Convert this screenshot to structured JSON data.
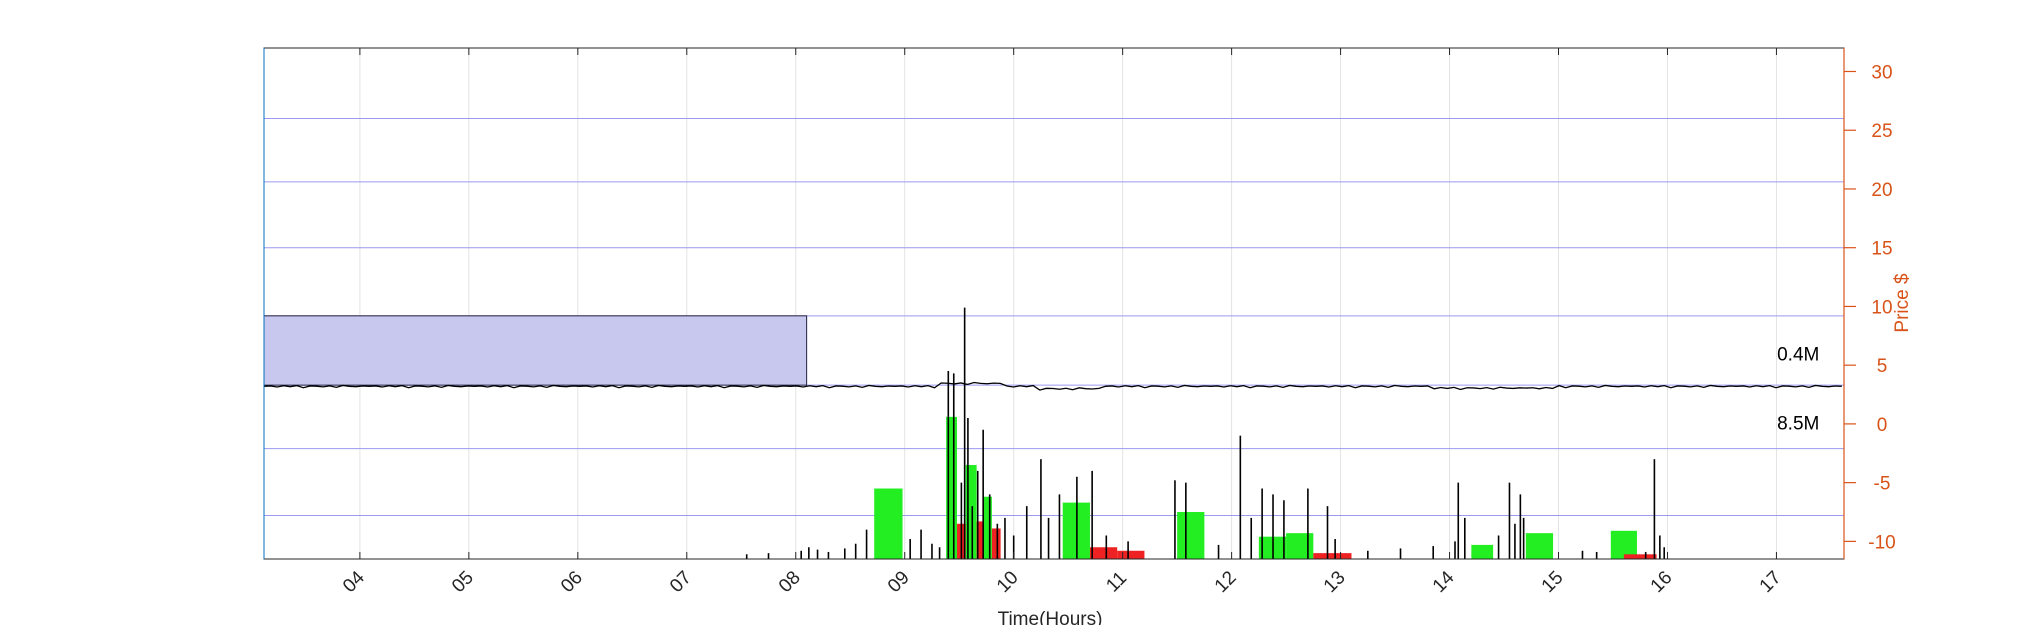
{
  "chart_data": {
    "type": "bar",
    "title": "",
    "xlabel": "Time(Hours)",
    "ylabel_right": "Price $",
    "x_ticks": [
      "04",
      "05",
      "06",
      "07",
      "08",
      "09",
      "10",
      "11",
      "12",
      "13",
      "14",
      "15",
      "16",
      "17"
    ],
    "xlim": [
      3.12,
      17.62
    ],
    "y_ticks": [
      "30",
      "25",
      "20",
      "15",
      "10",
      "5",
      "0",
      "-5",
      "-10"
    ],
    "ylim": [
      -11.5,
      32
    ],
    "grid": true,
    "price_level": 3.2,
    "premarket_volume_box": {
      "x": [
        3.12,
        8.1
      ],
      "y": [
        3.3,
        9.2
      ]
    },
    "annotations": [
      {
        "text": "0.4M",
        "x": 17.2,
        "y": 6.0
      },
      {
        "text": "8.5M",
        "x": 17.2,
        "y": 0.1
      }
    ],
    "series": [
      {
        "type": "buy_volume_bars",
        "color": "#22ee22",
        "bars": [
          {
            "x": [
              8.72,
              8.98
            ],
            "top": -5.5
          },
          {
            "x": [
              9.38,
              9.48
            ],
            "top": 0.6
          },
          {
            "x": [
              9.56,
              9.66
            ],
            "top": -3.5
          },
          {
            "x": [
              9.72,
              9.8
            ],
            "top": -6.2
          },
          {
            "x": [
              10.45,
              10.7
            ],
            "top": -6.7
          },
          {
            "x": [
              11.5,
              11.75
            ],
            "top": -7.5
          },
          {
            "x": [
              12.25,
              12.5
            ],
            "top": -9.6
          },
          {
            "x": [
              12.5,
              12.75
            ],
            "top": -9.3
          },
          {
            "x": [
              14.2,
              14.4
            ],
            "top": -10.3
          },
          {
            "x": [
              14.7,
              14.95
            ],
            "top": -9.3
          },
          {
            "x": [
              15.48,
              15.72
            ],
            "top": -9.1
          }
        ]
      },
      {
        "type": "sell_volume_bars",
        "color": "#ee2222",
        "bars": [
          {
            "x": [
              9.48,
              9.56
            ],
            "top": -8.5
          },
          {
            "x": [
              9.66,
              9.72
            ],
            "top": -8.3
          },
          {
            "x": [
              9.8,
              9.88
            ],
            "top": -8.9
          },
          {
            "x": [
              10.7,
              10.95
            ],
            "top": -10.5
          },
          {
            "x": [
              10.95,
              11.2
            ],
            "top": -10.8
          },
          {
            "x": [
              12.75,
              13.1
            ],
            "top": -11.0
          },
          {
            "x": [
              15.6,
              15.9
            ],
            "top": -11.1
          }
        ]
      },
      {
        "type": "trade_volume_spikes",
        "color": "#000000",
        "points": [
          {
            "x": 7.55,
            "top": -11.1
          },
          {
            "x": 7.75,
            "top": -11.0
          },
          {
            "x": 8.05,
            "top": -10.8
          },
          {
            "x": 8.12,
            "top": -10.5
          },
          {
            "x": 8.2,
            "top": -10.7
          },
          {
            "x": 8.3,
            "top": -10.9
          },
          {
            "x": 8.45,
            "top": -10.6
          },
          {
            "x": 8.55,
            "top": -10.2
          },
          {
            "x": 8.65,
            "top": -9.0
          },
          {
            "x": 9.05,
            "top": -9.8
          },
          {
            "x": 9.15,
            "top": -9.0
          },
          {
            "x": 9.25,
            "top": -10.2
          },
          {
            "x": 9.32,
            "top": -10.5
          },
          {
            "x": 9.4,
            "top": 4.5
          },
          {
            "x": 9.45,
            "top": 4.3
          },
          {
            "x": 9.52,
            "top": -5.0
          },
          {
            "x": 9.55,
            "top": 9.9
          },
          {
            "x": 9.58,
            "top": 0.5
          },
          {
            "x": 9.62,
            "top": -7.0
          },
          {
            "x": 9.67,
            "top": -4.0
          },
          {
            "x": 9.72,
            "top": -0.5
          },
          {
            "x": 9.78,
            "top": -6.0
          },
          {
            "x": 9.85,
            "top": -8.5
          },
          {
            "x": 9.92,
            "top": -8.0
          },
          {
            "x": 10.0,
            "top": -9.5
          },
          {
            "x": 10.12,
            "top": -7.0
          },
          {
            "x": 10.25,
            "top": -3.0
          },
          {
            "x": 10.32,
            "top": -8.0
          },
          {
            "x": 10.42,
            "top": -6.0
          },
          {
            "x": 10.58,
            "top": -4.5
          },
          {
            "x": 10.72,
            "top": -4.0
          },
          {
            "x": 10.85,
            "top": -9.5
          },
          {
            "x": 11.05,
            "top": -10.0
          },
          {
            "x": 11.48,
            "top": -4.8
          },
          {
            "x": 11.58,
            "top": -5.0
          },
          {
            "x": 11.88,
            "top": -10.3
          },
          {
            "x": 12.08,
            "top": -1.0
          },
          {
            "x": 12.18,
            "top": -8.0
          },
          {
            "x": 12.28,
            "top": -5.5
          },
          {
            "x": 12.38,
            "top": -6.0
          },
          {
            "x": 12.48,
            "top": -6.5
          },
          {
            "x": 12.7,
            "top": -5.5
          },
          {
            "x": 12.88,
            "top": -7.0
          },
          {
            "x": 12.95,
            "top": -9.8
          },
          {
            "x": 13.25,
            "top": -10.8
          },
          {
            "x": 13.55,
            "top": -10.6
          },
          {
            "x": 13.85,
            "top": -10.4
          },
          {
            "x": 14.05,
            "top": -10.0
          },
          {
            "x": 14.08,
            "top": -5.0
          },
          {
            "x": 14.14,
            "top": -8.0
          },
          {
            "x": 14.45,
            "top": -9.5
          },
          {
            "x": 14.55,
            "top": -5.0
          },
          {
            "x": 14.6,
            "top": -8.5
          },
          {
            "x": 14.65,
            "top": -6.0
          },
          {
            "x": 14.68,
            "top": -8.0
          },
          {
            "x": 15.22,
            "top": -10.8
          },
          {
            "x": 15.35,
            "top": -10.9
          },
          {
            "x": 15.8,
            "top": -10.9
          },
          {
            "x": 15.88,
            "top": -3.0
          },
          {
            "x": 15.93,
            "top": -9.5
          },
          {
            "x": 15.97,
            "top": -10.5
          }
        ]
      }
    ]
  }
}
